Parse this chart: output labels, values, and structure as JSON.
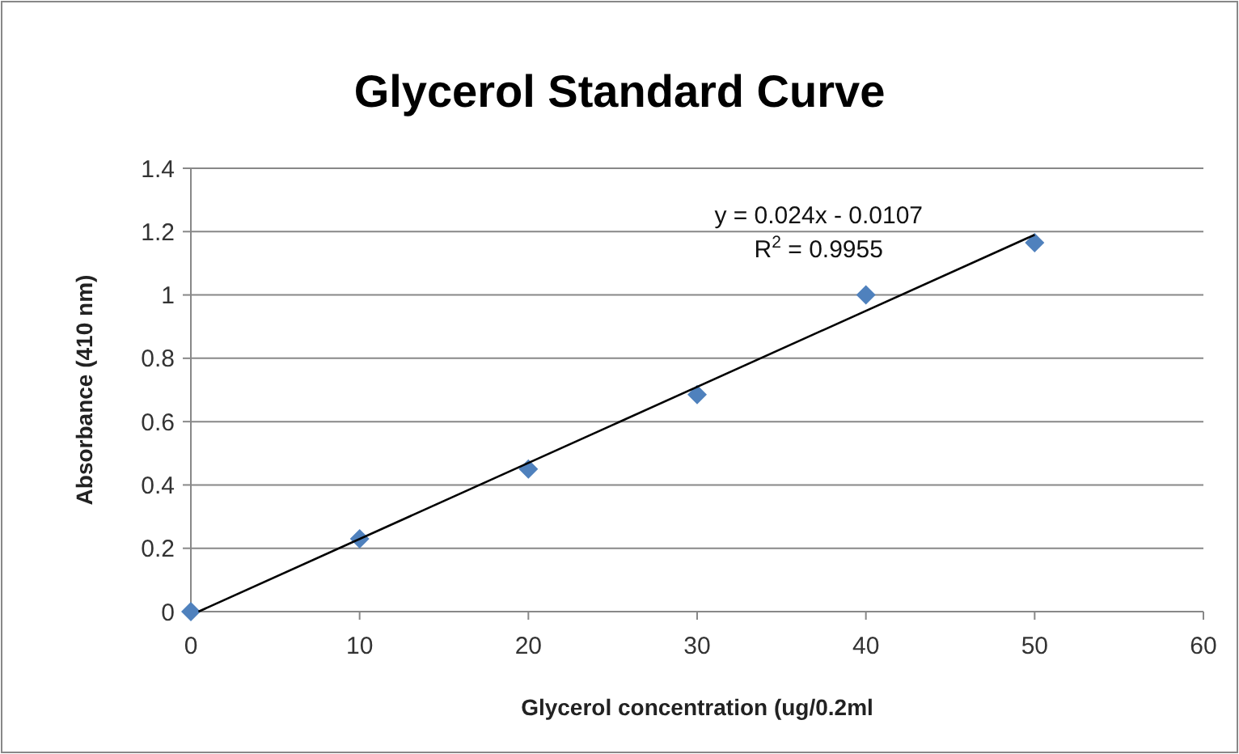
{
  "chart_data": {
    "type": "scatter",
    "title": "Glycerol Standard Curve",
    "xlabel": "Glycerol concentration (ug/0.2ml",
    "ylabel": "Absorbance  (410 nm)",
    "series": [
      {
        "type": "scatter",
        "x": [
          0,
          10,
          20,
          30,
          40,
          50
        ],
        "values": [
          0,
          0.23,
          0.45,
          0.685,
          1.0,
          1.165
        ],
        "color": "#4f81bd",
        "marker": "diamond"
      },
      {
        "type": "line",
        "x": [
          0.45,
          50
        ],
        "values": [
          0,
          1.19
        ],
        "color": "#000000",
        "marker": "none",
        "line_style": "solid"
      }
    ],
    "annotations": [
      "y = 0.024x - 0.0107",
      "R$^{2}$ = 0.9955"
    ],
    "xlim": [
      0,
      60
    ],
    "xticks": [
      0,
      10,
      20,
      30,
      40,
      50,
      60
    ],
    "ylim": [
      0,
      1.4
    ],
    "yticks": [
      0,
      0.2,
      0.4,
      0.6,
      0.8,
      1,
      1.2,
      1.4
    ],
    "grid": "y"
  }
}
